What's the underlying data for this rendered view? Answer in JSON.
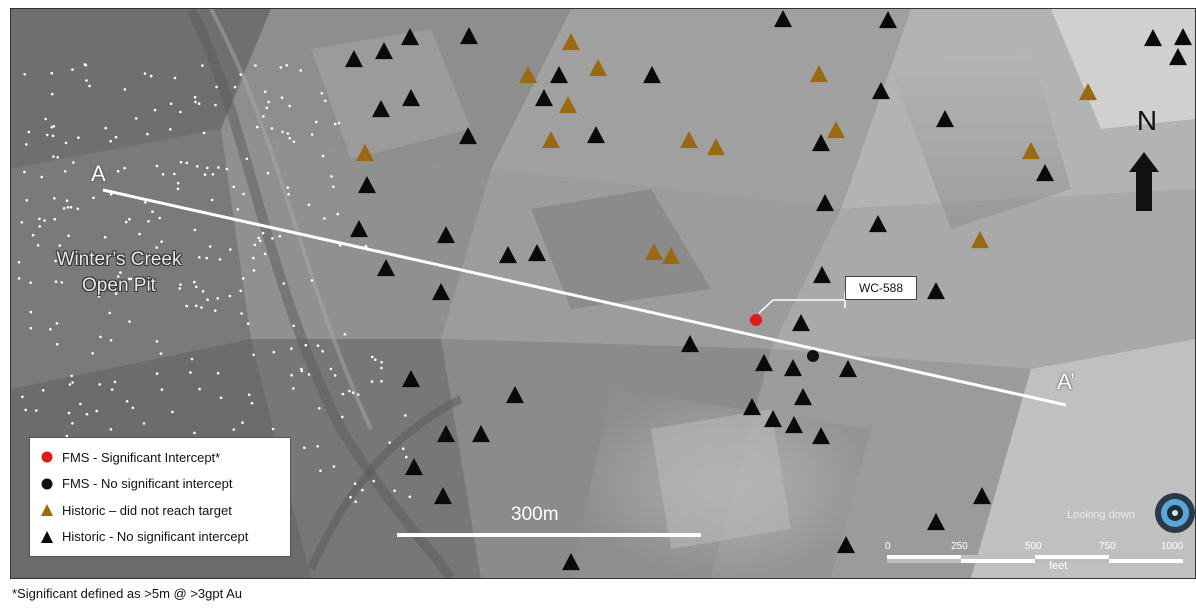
{
  "map": {
    "pit_label_line1": "Winter’s Creek",
    "pit_label_line2": "Open Pit",
    "section_start": "A",
    "section_end": "A’",
    "callout": "WC-588",
    "north": "N",
    "view_mode": "Looking down",
    "scale_metric": "300m",
    "scale_feet_unit": "feet",
    "scale_feet_ticks": [
      "0",
      "250",
      "500",
      "750",
      "1000"
    ],
    "colors": {
      "terrain": "#8a8a8a",
      "fms_significant": "#e01b1b",
      "fms_no_significant": "#111111",
      "historic_not_reached": "#9a6a12",
      "historic_no_significant": "#0a0a0a"
    }
  },
  "legend": {
    "items": [
      {
        "label": "FMS - Significant Intercept*",
        "symbol": "circle",
        "color": "#e01b1b"
      },
      {
        "label": "FMS - No significant intercept",
        "symbol": "circle",
        "color": "#111111"
      },
      {
        "label": "Historic – did not reach target",
        "symbol": "triangle",
        "color": "#9a6a12"
      },
      {
        "label": "Historic - No significant intercept",
        "symbol": "triangle",
        "color": "#0a0a0a"
      }
    ]
  },
  "footnote": "*Significant defined as >5m @ >3gpt Au"
}
